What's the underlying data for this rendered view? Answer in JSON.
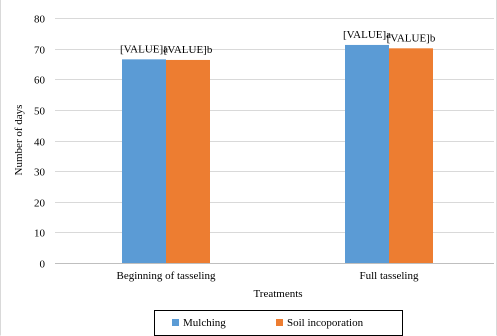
{
  "chart_data": {
    "type": "bar",
    "categories": [
      "Beginning of tasseling",
      "Full tasseling"
    ],
    "series": [
      {
        "name": "Mulching",
        "color": "#5B9BD5",
        "values": [
          66.5,
          71.2
        ],
        "labels": [
          "[VALUE]a",
          "[VALUE]a"
        ]
      },
      {
        "name": "Soil incoporation",
        "color": "#ED7D31",
        "values": [
          66.3,
          70.1
        ],
        "labels": [
          "[VALUE]b",
          "[VALUE]b"
        ]
      }
    ],
    "xlabel": "Treatments",
    "ylabel": "Number of days",
    "ylim": [
      0,
      80
    ],
    "yticks": [
      0,
      10,
      20,
      30,
      40,
      50,
      60,
      70,
      80
    ],
    "grid": true,
    "legend_position": "bottom"
  }
}
